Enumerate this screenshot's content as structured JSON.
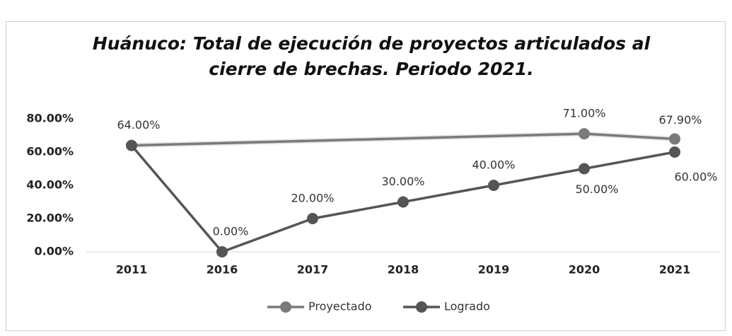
{
  "chart_data": {
    "type": "line",
    "title": "Huánuco: Total de ejecución de proyectos articulados al cierre de brechas. Periodo 2021.",
    "categories": [
      "2011",
      "2016",
      "2017",
      "2018",
      "2019",
      "2020",
      "2021"
    ],
    "series": [
      {
        "name": "Proyectado",
        "color": "#7a7a7a",
        "values": [
          64,
          null,
          null,
          null,
          null,
          71,
          67.9
        ],
        "value_labels": [
          "64.00%",
          null,
          null,
          null,
          null,
          "71.00%",
          "67.90%"
        ]
      },
      {
        "name": "Logrado",
        "color": "#555555",
        "values": [
          64,
          0,
          20,
          30,
          40,
          50,
          60
        ],
        "value_labels": [
          null,
          "0.00%",
          "20.00%",
          "30.00%",
          "40.00%",
          "50.00%",
          "60.00%"
        ]
      }
    ],
    "connect_gaps": true,
    "ylim": [
      0,
      80
    ],
    "yticks": [
      {
        "value": 0,
        "label": "0.00%"
      },
      {
        "value": 20,
        "label": "20.00%"
      },
      {
        "value": 40,
        "label": "40.00%"
      },
      {
        "value": 60,
        "label": "60.00%"
      },
      {
        "value": 80,
        "label": "80.00%"
      }
    ],
    "grid": false,
    "legend": "bottom"
  }
}
